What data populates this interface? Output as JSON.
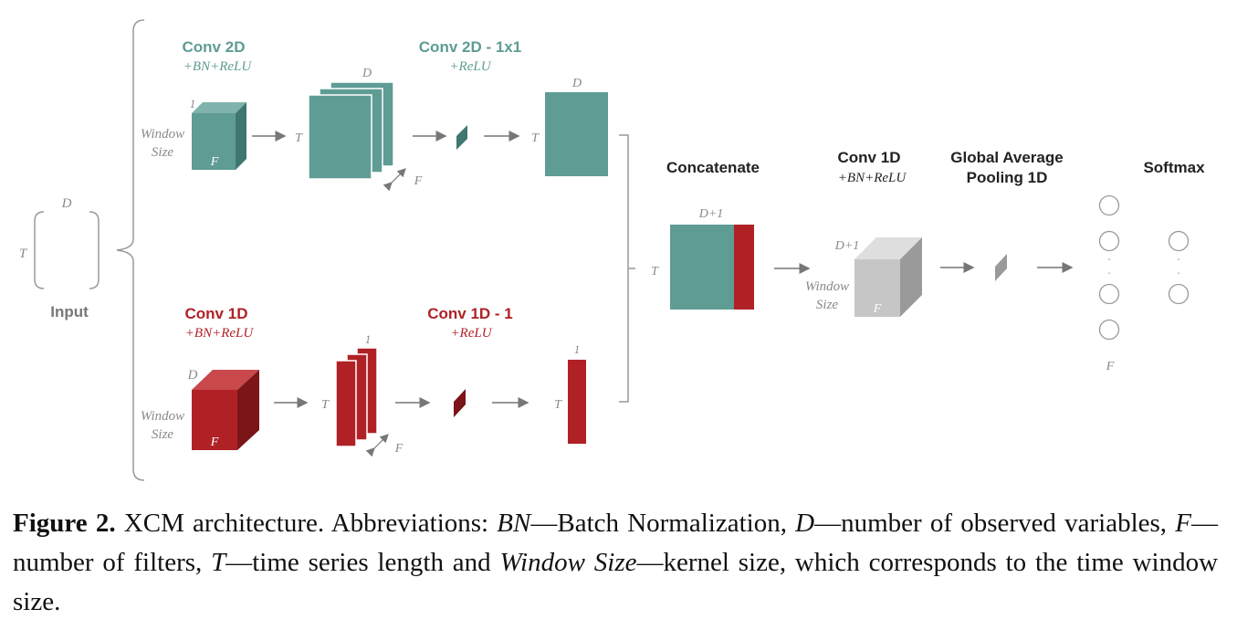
{
  "colors": {
    "teal": "#5e9c94",
    "teal_light": "#7fb3ab",
    "teal_dark": "#3f7770",
    "red": "#b02126",
    "red_light": "#c8484c",
    "red_dark": "#7c1518",
    "grey": "#c6c6c6",
    "grey_light": "#dedede",
    "grey_dark": "#9a9a9a",
    "label_grey": "#8a8a8a",
    "dim_grey": "#777777"
  },
  "input": {
    "title": "Input",
    "dim_top": "D",
    "dim_left": "T"
  },
  "branch_2d": {
    "conv_title": "Conv 2D",
    "conv_sub": "+BN+ReLU",
    "conv1x1_title": "Conv 2D - 1x1",
    "conv1x1_sub": "+ReLU",
    "kernel_top": "1",
    "kernel_side": "Window",
    "kernel_side2": "Size",
    "kernel_face": "F",
    "maps_top": "D",
    "maps_left": "T",
    "maps_diag": "F",
    "out_top": "D",
    "out_left": "T"
  },
  "branch_1d": {
    "conv_title": "Conv 1D",
    "conv_sub": "+BN+ReLU",
    "conv1_title": "Conv 1D - 1",
    "conv1_sub": "+ReLU",
    "kernel_top": "D",
    "kernel_side": "Window",
    "kernel_side2": "Size",
    "kernel_face": "F",
    "maps_top": "1",
    "maps_left": "T",
    "maps_diag": "F",
    "out_top": "1",
    "out_left": "T"
  },
  "concat": {
    "title": "Concatenate",
    "top": "D+1",
    "left": "T"
  },
  "conv1d_final": {
    "title": "Conv 1D",
    "sub": "+BN+ReLU",
    "top": "D+1",
    "side": "Window",
    "side2": "Size",
    "face": "F"
  },
  "gap": {
    "title_line1": "Global Average",
    "title_line2": "Pooling 1D"
  },
  "fc": {
    "bottom": "F",
    "dot": "."
  },
  "softmax": {
    "title": "Softmax"
  },
  "caption": {
    "fig_label": "Figure 2.",
    "text_1": " XCM architecture. Abbreviations: ",
    "bn": "BN",
    "text_2": "—Batch Normalization, ",
    "d": "D",
    "text_3": "—number of observed variables, ",
    "f": "F",
    "text_4": "—number of filters, ",
    "t": "T",
    "text_5": "—time series length and ",
    "ws": "Window Size",
    "text_6": "—kernel size, which corresponds to the time window size."
  }
}
